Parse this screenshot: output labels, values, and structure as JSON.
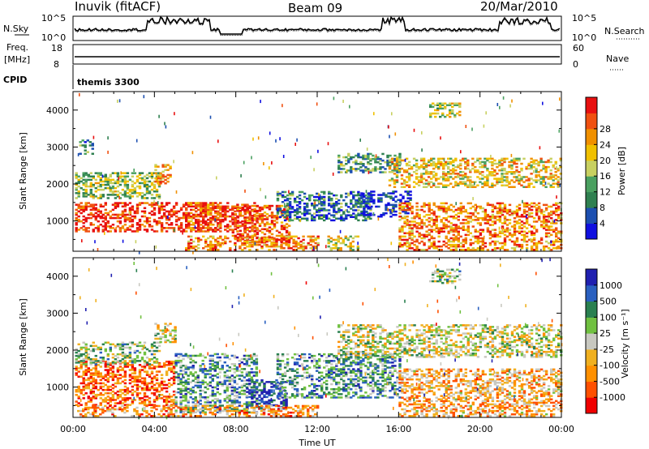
{
  "header": {
    "station": "Inuvik (fitACF)",
    "beam": "Beam 09",
    "date": "20/Mar/2010"
  },
  "noise_panel": {
    "left_label": "N.Sky",
    "right_label": "N.Search",
    "ticks_left": [
      "10^5",
      "10^0"
    ],
    "ticks_right": [
      "10^5",
      "10^0"
    ]
  },
  "freq_panel": {
    "left_label_1": "Freq.",
    "left_label_2": "[MHz]",
    "right_label": "Nave",
    "ticks_left": [
      "18",
      "8"
    ],
    "ticks_right": [
      "60",
      "0"
    ]
  },
  "cpid": {
    "label": "CPID",
    "value": "themis 3300"
  },
  "colors": {
    "power": [
      "#1010e0",
      "#1c4fb0",
      "#2f8050",
      "#4aa060",
      "#c8d060",
      "#f0c000",
      "#f09000",
      "#f05010",
      "#e81010"
    ],
    "velocity": [
      "#f00000",
      "#ff5000",
      "#ff9000",
      "#f0b020",
      "#c8c8c0",
      "#70c040",
      "#2a8050",
      "#2a60c0",
      "#2020b0"
    ],
    "ground_scatter": "#c0c0b8"
  },
  "chart_data": [
    {
      "type": "heatmap",
      "name": "power",
      "xlabel": "Time UT",
      "ylabel": "Slant Range [km]",
      "x_ticks": [
        "00:00",
        "04:00",
        "08:00",
        "12:00",
        "16:00",
        "20:00",
        "00:00"
      ],
      "xlim_hours": [
        0,
        24
      ],
      "y_ticks": [
        "1000",
        "2000",
        "3000",
        "4000"
      ],
      "y_tick_values": [
        1000,
        2000,
        3000,
        4000
      ],
      "ylim": [
        180,
        4500
      ],
      "colorbar_label": "Power [dB]",
      "colorbar_ticks": [
        "4",
        "8",
        "12",
        "16",
        "20",
        "24",
        "28"
      ],
      "colorbar_values": [
        4,
        8,
        12,
        16,
        20,
        24,
        28
      ],
      "scatter_bands": [
        {
          "t": [
            0.1,
            9.0
          ],
          "r": [
            700,
            1500
          ],
          "level": 0.9
        },
        {
          "t": [
            0.1,
            4.3
          ],
          "r": [
            1600,
            2300
          ],
          "level": 0.45
        },
        {
          "t": [
            5.5,
            7.5
          ],
          "r": [
            700,
            1500
          ],
          "level": 0.85
        },
        {
          "t": [
            7.8,
            10.6
          ],
          "r": [
            400,
            1400
          ],
          "level": 0.85
        },
        {
          "t": [
            5.5,
            12.0
          ],
          "r": [
            200,
            600
          ],
          "level": 0.75
        },
        {
          "t": [
            10.0,
            14.6
          ],
          "r": [
            1000,
            1800
          ],
          "level": 0.25
        },
        {
          "t": [
            12.5,
            14.0
          ],
          "r": [
            200,
            600
          ],
          "level": 0.55
        },
        {
          "t": [
            13.0,
            16.0
          ],
          "r": [
            2300,
            2800
          ],
          "level": 0.35
        },
        {
          "t": [
            14.0,
            16.6
          ],
          "r": [
            1100,
            1800
          ],
          "level": 0.1
        },
        {
          "t": [
            15.5,
            24.0
          ],
          "r": [
            1900,
            2700
          ],
          "level": 0.6
        },
        {
          "t": [
            16.0,
            24.0
          ],
          "r": [
            200,
            1500
          ],
          "level": 0.75
        },
        {
          "t": [
            4.0,
            4.8
          ],
          "r": [
            2000,
            2500
          ],
          "level": 0.7
        },
        {
          "t": [
            17.5,
            19.0
          ],
          "r": [
            3800,
            4200
          ],
          "level": 0.5
        },
        {
          "t": [
            0.3,
            1.0
          ],
          "r": [
            2800,
            3200
          ],
          "level": 0.3
        }
      ]
    },
    {
      "type": "heatmap",
      "name": "velocity",
      "xlabel": "Time UT",
      "ylabel": "Slant Range [km]",
      "x_ticks": [
        "00:00",
        "04:00",
        "08:00",
        "12:00",
        "16:00",
        "20:00",
        "00:00"
      ],
      "xlim_hours": [
        0,
        24
      ],
      "y_ticks": [
        "1000",
        "2000",
        "3000",
        "4000"
      ],
      "y_tick_values": [
        1000,
        2000,
        3000,
        4000
      ],
      "ylim": [
        180,
        4500
      ],
      "colorbar_label": "Velocity [m s⁻¹]",
      "colorbar_ticks": [
        "1000",
        "500",
        "100",
        "25",
        "-25",
        "-100",
        "-500",
        "-1000"
      ],
      "scatter_bands": [
        {
          "t": [
            0.1,
            5.0
          ],
          "r": [
            500,
            1700
          ],
          "level": 0.2
        },
        {
          "t": [
            0.1,
            4.3
          ],
          "r": [
            1600,
            2200
          ],
          "level": 0.6
        },
        {
          "t": [
            5.0,
            9.0
          ],
          "r": [
            300,
            1900
          ],
          "level": 0.7
        },
        {
          "t": [
            8.5,
            10.5
          ],
          "r": [
            400,
            1200
          ],
          "level": 0.9
        },
        {
          "t": [
            10.0,
            16.0
          ],
          "r": [
            700,
            1900
          ],
          "level": 0.7
        },
        {
          "t": [
            4.0,
            5.0
          ],
          "r": [
            2200,
            2700
          ],
          "level": 0.5
        },
        {
          "t": [
            13.0,
            24.0
          ],
          "r": [
            1800,
            2700
          ],
          "level": 0.5
        },
        {
          "t": [
            16.0,
            24.0
          ],
          "r": [
            200,
            1500
          ],
          "level": 0.35
        },
        {
          "t": [
            0.2,
            12.0
          ],
          "r": [
            200,
            500
          ],
          "level": 0.3
        },
        {
          "t": [
            17.5,
            19.0
          ],
          "r": [
            3800,
            4200
          ],
          "level": 0.6
        }
      ]
    }
  ]
}
